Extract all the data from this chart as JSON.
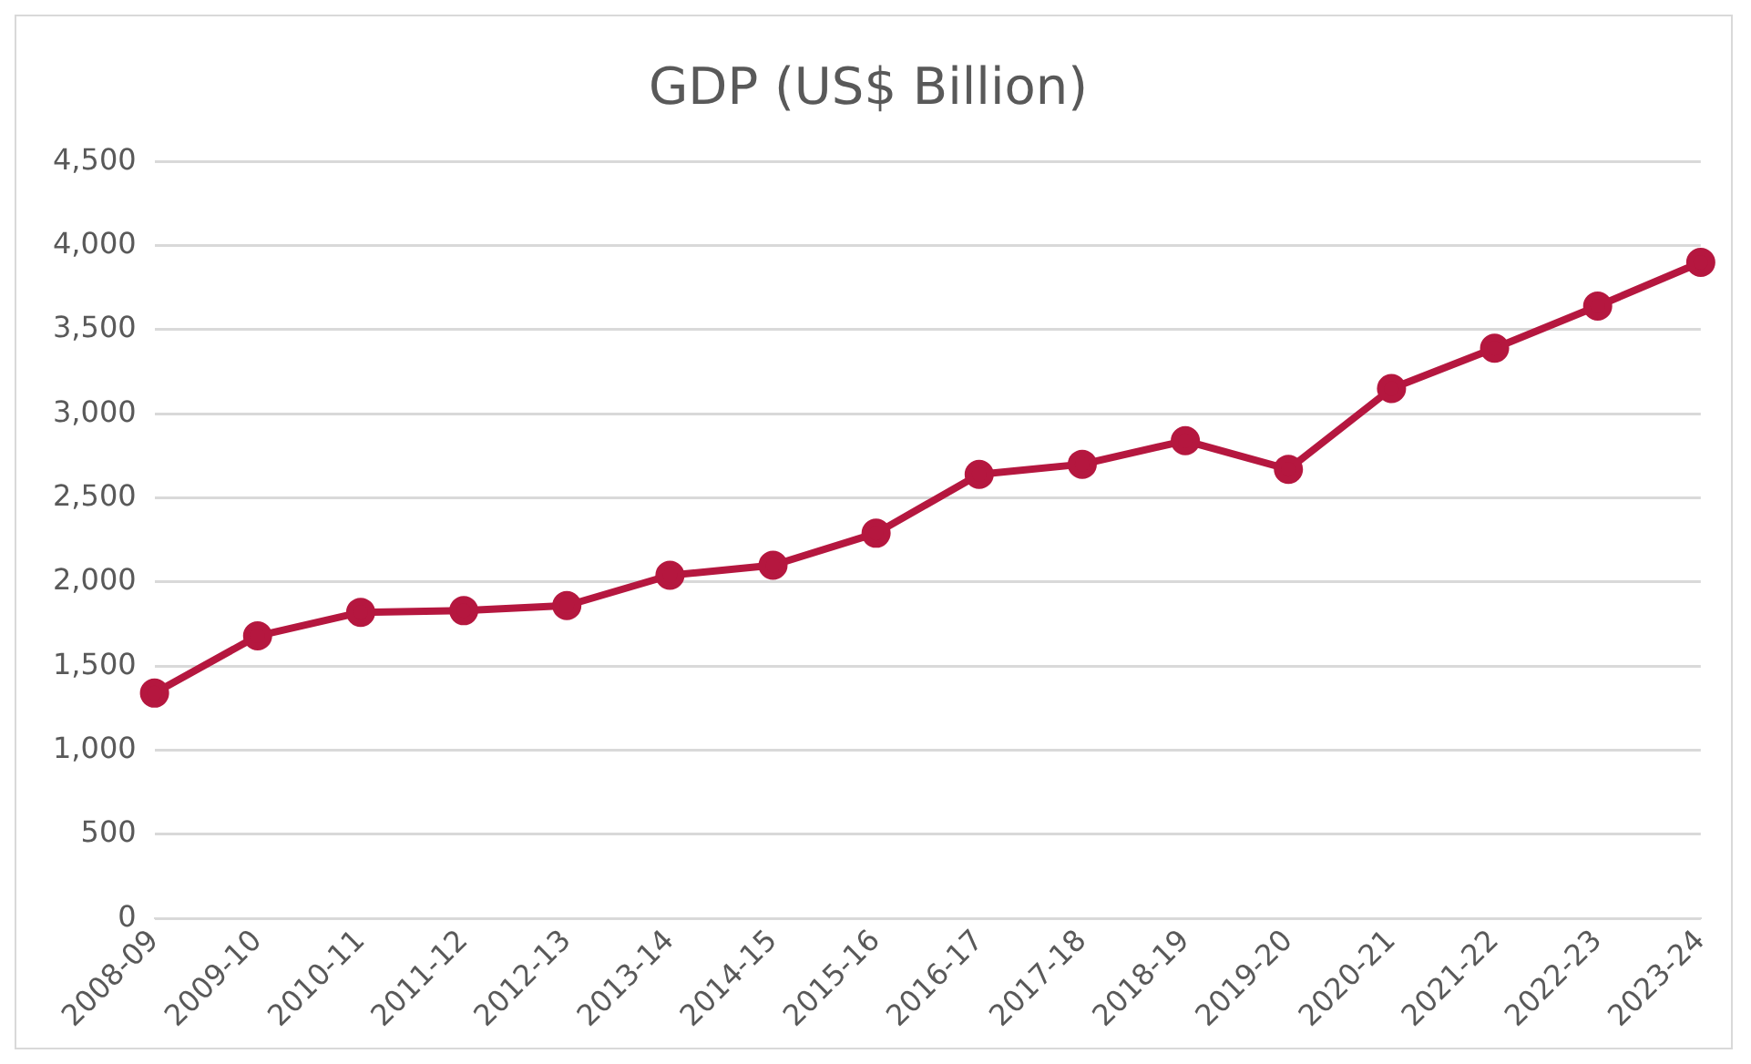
{
  "chart_data": {
    "type": "line",
    "title": "GDP (US$ Billion)",
    "categories": [
      "2008-09",
      "2009-10",
      "2010-11",
      "2011-12",
      "2012-13",
      "2013-14",
      "2014-15",
      "2015-16",
      "2016-17",
      "2017-18",
      "2018-19",
      "2019-20",
      "2020-21",
      "2021-22",
      "2022-23",
      "2023-24"
    ],
    "series": [
      {
        "color": "#b5173f",
        "values": [
          1340,
          1680,
          1820,
          1830,
          1860,
          2040,
          2100,
          2290,
          2640,
          2700,
          2840,
          2670,
          3150,
          3390,
          3640,
          3900
        ]
      }
    ],
    "ylim": [
      0,
      4500
    ],
    "yticks": [
      {
        "value": 0,
        "label": "0"
      },
      {
        "value": 500,
        "label": "500"
      },
      {
        "value": 1000,
        "label": "1,000"
      },
      {
        "value": 1500,
        "label": "1,500"
      },
      {
        "value": 2000,
        "label": "2,000"
      },
      {
        "value": 2500,
        "label": "2,500"
      },
      {
        "value": 3000,
        "label": "3,000"
      },
      {
        "value": 3500,
        "label": "3,500"
      },
      {
        "value": 4000,
        "label": "4,000"
      },
      {
        "value": 4500,
        "label": "4,500"
      }
    ],
    "grid": "y",
    "marker": "circle",
    "line_style": "solid",
    "legend": false
  }
}
